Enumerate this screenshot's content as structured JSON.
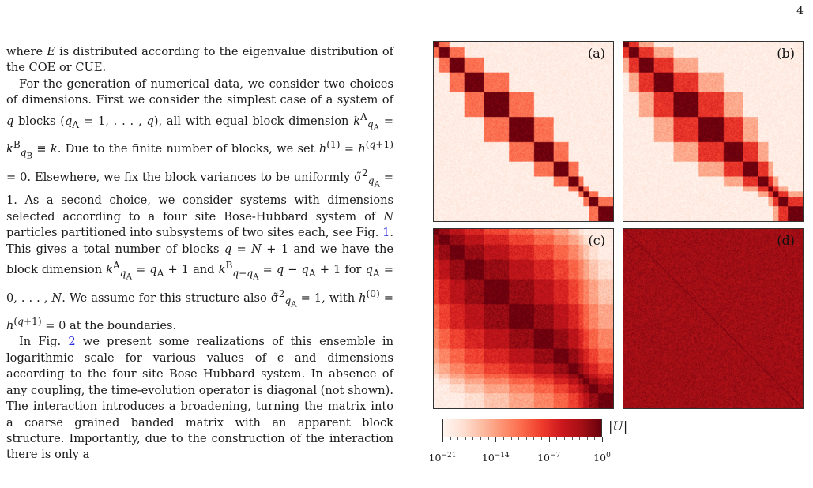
{
  "page_number": "4",
  "paragraphs": [
    "where E is distributed according to the eigenvalue distribution of the COE or CUE.",
    "For the generation of numerical data, we consider two choices of dimensions. First we consider the simplest case of a system of q blocks (qA = 1, . . . , q), all with equal block dimension k^A_qA = k^B_qB ≡ k. Due to the finite number of blocks, we set h^(1) = h^(q+1) = 0. Elsewhere, we fix the block variances to be uniformly σ̃²_qA = 1. As a second choice, we consider systems with dimensions selected according to a four site Bose-Hubbard system of N particles partitioned into subsystems of two sites each, see Fig. 1. This gives a total number of blocks q = N + 1 and we have the block dimension k^A_qA = qA + 1 and k^B_q−qA = q − qA + 1 for qA = 0, . . . , N. We assume for this structure also σ̃²_qA = 1, with h^(0) = h^(q+1) = 0 at the boundaries.",
    "In Fig. 2 we present some realizations of this ensemble in logarithmic scale for various values of ε and dimensions according to the four site Bose Hubbard system. In absence of any coupling, the time-evolution operator is diagonal (not shown). The interaction introduces a broadening, turning the matrix into a coarse grained banded matrix with an apparent block structure. Importantly, due to the construction of the interaction there is only a"
  ],
  "figure": {
    "panels": [
      {
        "label": "(a)",
        "spread": 0.6
      },
      {
        "label": "(b)",
        "spread": 0.9
      },
      {
        "label": "(c)",
        "spread": 3.2
      },
      {
        "label": "(d)",
        "spread": 9.0
      }
    ],
    "colorbar": {
      "label": "|U|",
      "ticks": [
        {
          "base": "10",
          "exp": "−21"
        },
        {
          "base": "10",
          "exp": "−14"
        },
        {
          "base": "10",
          "exp": "−7"
        },
        {
          "base": "10",
          "exp": "0"
        }
      ],
      "colormap": [
        "#fff5f0",
        "#fee0d2",
        "#fcbba1",
        "#fc9272",
        "#fb6a4a",
        "#ef3b2c",
        "#cb181d",
        "#a50f15",
        "#67000d"
      ]
    }
  }
}
